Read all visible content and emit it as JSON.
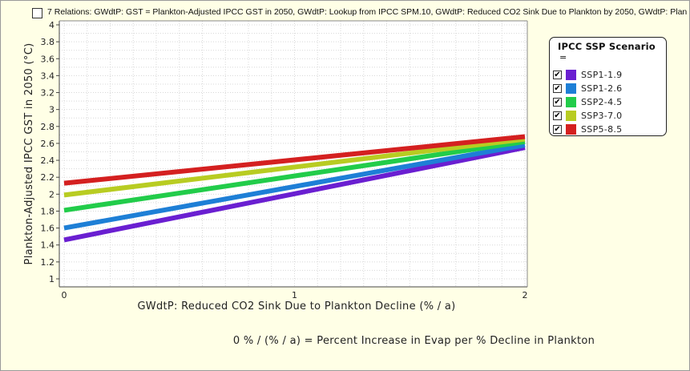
{
  "header": {
    "title": "7 Relations: GWdtP: GST = Plankton-Adjusted IPCC GST in 2050, GWdtP: Lookup from IPCC SPM.10, GWdtP: Reduced CO2 Sink Due to Plankton by 2050, GWdtP: Plan"
  },
  "legend": {
    "title": "IPCC SSP Scenario",
    "title_suffix": "="
  },
  "footer": {
    "text": "0 % / (% / a) = Percent Increase in Evap per % Decline in Plankton"
  },
  "chart_data": {
    "type": "line",
    "xlabel": "GWdtP: Reduced CO2 Sink Due to Plankton Decline (% / a)",
    "ylabel": "Plankton-Adjusted IPCC GST in 2050 (°C)",
    "xlim": [
      0,
      2
    ],
    "ylim": [
      1,
      4
    ],
    "x_ticks": [
      "0",
      "1",
      "2"
    ],
    "y_ticks": [
      "1",
      "1.2",
      "1.4",
      "1.6",
      "1.8",
      "2",
      "2.2",
      "2.4",
      "2.6",
      "2.8",
      "3",
      "3.2",
      "3.4",
      "3.6",
      "3.8",
      "4"
    ],
    "grid": true,
    "legend_position": "right",
    "x": [
      0,
      2
    ],
    "series": [
      {
        "name": "SSP1-1.9",
        "color": "#6a1fd1",
        "checked": true,
        "values": [
          1.46,
          2.55
        ]
      },
      {
        "name": "SSP1-2.6",
        "color": "#1e7fd6",
        "checked": true,
        "values": [
          1.6,
          2.58
        ]
      },
      {
        "name": "SSP2-4.5",
        "color": "#22cc4a",
        "checked": true,
        "values": [
          1.81,
          2.62
        ]
      },
      {
        "name": "SSP3-7.0",
        "color": "#b8cc22",
        "checked": true,
        "values": [
          1.99,
          2.65
        ]
      },
      {
        "name": "SSP5-8.5",
        "color": "#d42020",
        "checked": true,
        "values": [
          2.13,
          2.68
        ]
      }
    ]
  }
}
